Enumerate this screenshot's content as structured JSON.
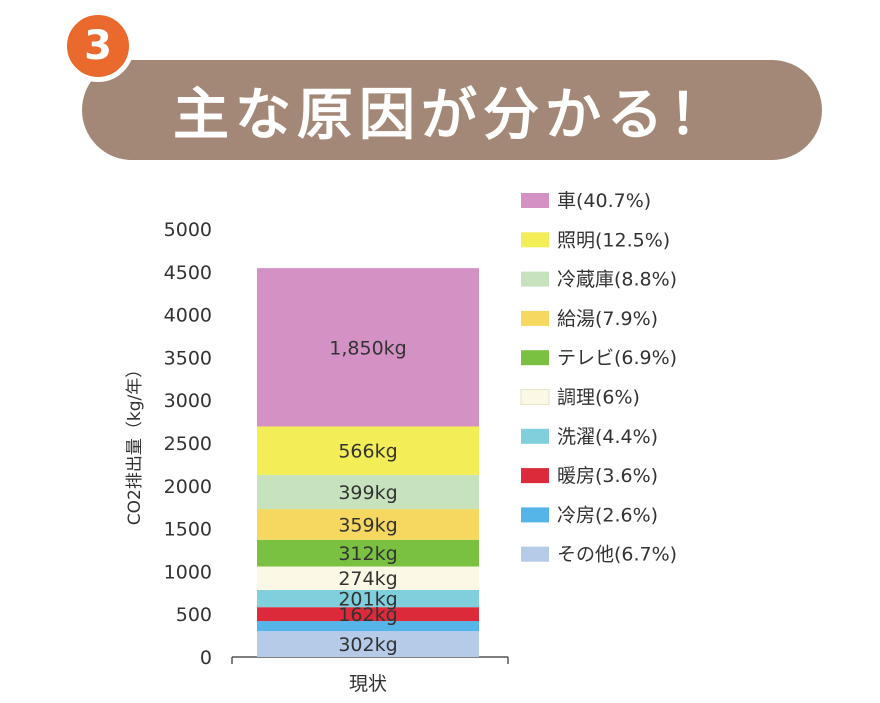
{
  "header": {
    "step_number": "3",
    "title": "主な原因が分かる！"
  },
  "chart_data": {
    "type": "bar",
    "stacked": true,
    "categories": [
      "現状"
    ],
    "ylabel": "CO2排出量（kg/年）",
    "ylim": [
      0,
      5000
    ],
    "yticks": [
      0,
      500,
      1000,
      1500,
      2000,
      2500,
      3000,
      3500,
      4000,
      4500,
      5000
    ],
    "legend_position": "right",
    "series": [
      {
        "name": "その他(6.7%)",
        "value": 302,
        "label": "302kg",
        "color": "#b5cbe7"
      },
      {
        "name": "冷房(2.6%)",
        "value": 118,
        "label": "",
        "color": "#55b4e8"
      },
      {
        "name": "暖房(3.6%)",
        "value": 162,
        "label": "162kg",
        "color": "#dd2a3a"
      },
      {
        "name": "洗濯(4.4%)",
        "value": 201,
        "label": "201kg",
        "color": "#7fcfdc"
      },
      {
        "name": "調理(6%)",
        "value": 274,
        "label": "274kg",
        "color": "#fbf8e6"
      },
      {
        "name": "テレビ(6.9%)",
        "value": 312,
        "label": "312kg",
        "color": "#7ac142"
      },
      {
        "name": "給湯(7.9%)",
        "value": 359,
        "label": "359kg",
        "color": "#f6d860"
      },
      {
        "name": "冷蔵庫(8.8%)",
        "value": 399,
        "label": "399kg",
        "color": "#c7e3bd"
      },
      {
        "name": "照明(12.5%)",
        "value": 566,
        "label": "566kg",
        "color": "#f3ee57"
      },
      {
        "name": "車(40.7%)",
        "value": 1850,
        "label": "1,850kg",
        "color": "#d492c4"
      }
    ],
    "legend_order": [
      "車(40.7%)",
      "照明(12.5%)",
      "冷蔵庫(8.8%)",
      "給湯(7.9%)",
      "テレビ(6.9%)",
      "調理(6%)",
      "洗濯(4.4%)",
      "暖房(3.6%)",
      "冷房(2.6%)",
      "その他(6.7%)"
    ]
  }
}
